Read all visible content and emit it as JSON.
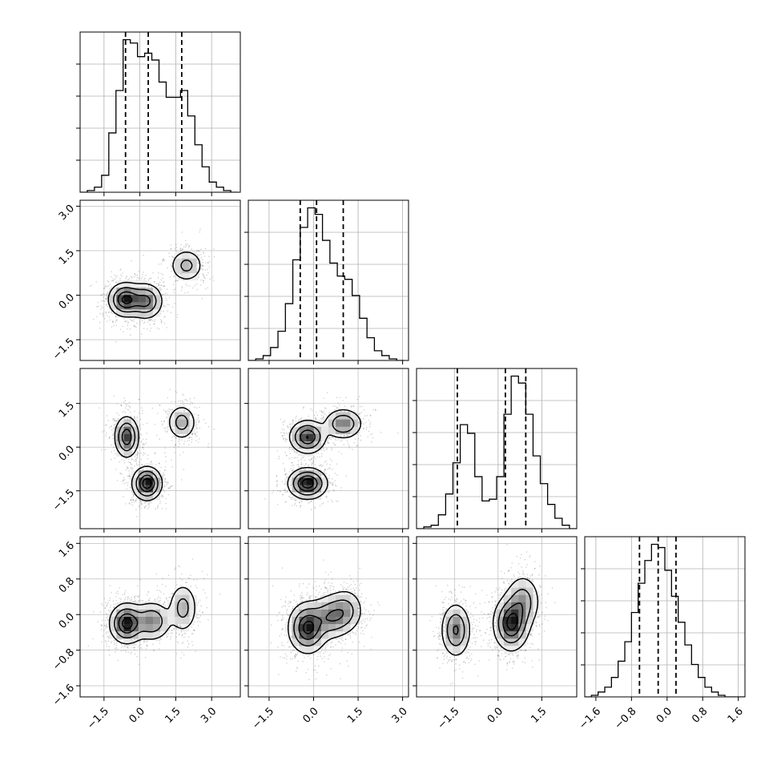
{
  "chart_data": {
    "type": "corner",
    "title": "",
    "n_params": 4,
    "colors": {
      "line": "#000000",
      "grid": "#b0b0b0",
      "hist_fill": "#000000"
    },
    "grid": true,
    "quantiles": [
      0.16,
      0.5,
      0.84
    ],
    "axis_ranges": [
      [
        -2.5,
        4.2
      ],
      [
        -2.2,
        3.2
      ],
      [
        -2.8,
        2.7
      ],
      [
        -1.85,
        1.75
      ]
    ],
    "ticks": [
      {
        "values": [
          -1.5,
          0.0,
          1.5,
          3.0
        ],
        "labels": [
          "−1.5",
          "0.0",
          "1.5",
          "3.0"
        ]
      },
      {
        "values": [
          -1.5,
          0.0,
          1.5,
          3.0
        ],
        "labels": [
          "−1.5",
          "0.0",
          "1.5",
          "3.0"
        ]
      },
      {
        "values": [
          -1.5,
          0.0,
          1.5
        ],
        "labels": [
          "−1.5",
          "0.0",
          "1.5"
        ]
      },
      {
        "values": [
          -1.6,
          -0.8,
          0.0,
          0.8,
          1.6
        ],
        "labels": [
          "−1.6",
          "−0.8",
          "0.0",
          "0.8",
          "1.6"
        ]
      }
    ],
    "marginals": [
      {
        "param": 0,
        "quantile_values": [
          -0.6,
          0.35,
          1.75
        ],
        "bin_edges": [
          -2.5,
          -2.2,
          -1.9,
          -1.6,
          -1.3,
          -1.0,
          -0.7,
          -0.4,
          -0.1,
          0.2,
          0.5,
          0.8,
          1.1,
          1.4,
          1.7,
          2.0,
          2.3,
          2.6,
          2.9,
          3.2,
          3.5,
          3.8,
          4.1
        ],
        "counts": [
          0,
          1,
          3,
          10,
          35,
          60,
          90,
          88,
          80,
          82,
          78,
          65,
          56,
          56,
          60,
          45,
          28,
          15,
          6,
          3,
          1,
          0
        ]
      },
      {
        "param": 1,
        "quantile_values": [
          -0.45,
          0.1,
          1.0
        ],
        "bin_edges": [
          -2.2,
          -1.95,
          -1.7,
          -1.45,
          -1.2,
          -0.95,
          -0.7,
          -0.45,
          -0.2,
          0.05,
          0.3,
          0.55,
          0.8,
          1.05,
          1.3,
          1.55,
          1.8,
          2.05,
          2.3,
          2.55,
          2.8,
          3.05
        ],
        "counts": [
          0,
          1,
          3,
          8,
          18,
          35,
          62,
          82,
          94,
          90,
          74,
          60,
          52,
          50,
          40,
          26,
          14,
          6,
          3,
          1,
          0
        ]
      },
      {
        "param": 2,
        "quantile_values": [
          -1.4,
          0.25,
          0.95
        ],
        "bin_edges": [
          -2.8,
          -2.55,
          -2.3,
          -2.05,
          -1.8,
          -1.55,
          -1.3,
          -1.05,
          -0.8,
          -0.55,
          -0.3,
          -0.05,
          0.2,
          0.45,
          0.7,
          0.95,
          1.2,
          1.45,
          1.7,
          1.95,
          2.2,
          2.45,
          2.7
        ],
        "counts": [
          0,
          1,
          2,
          8,
          20,
          38,
          60,
          55,
          30,
          16,
          17,
          30,
          66,
          88,
          84,
          66,
          42,
          26,
          14,
          6,
          2,
          0
        ]
      },
      {
        "param": 3,
        "quantile_values": [
          -0.62,
          -0.2,
          0.2
        ],
        "bin_edges": [
          -1.85,
          -1.7,
          -1.55,
          -1.4,
          -1.25,
          -1.1,
          -0.95,
          -0.8,
          -0.65,
          -0.5,
          -0.35,
          -0.2,
          -0.05,
          0.1,
          0.25,
          0.4,
          0.55,
          0.7,
          0.85,
          1.0,
          1.15,
          1.3,
          1.45,
          1.6,
          1.75
        ],
        "counts": [
          0,
          1,
          3,
          6,
          12,
          22,
          34,
          52,
          70,
          84,
          94,
          92,
          78,
          62,
          46,
          32,
          20,
          12,
          6,
          3,
          1,
          0,
          0,
          0
        ]
      }
    ],
    "joints": [
      {
        "x_param": 0,
        "y_param": 1,
        "spread": [
          0.9,
          0.75
        ],
        "modes": [
          {
            "x": -0.6,
            "y": -0.15,
            "sx": 0.35,
            "sy": 0.28,
            "w": 1.0
          },
          {
            "x": 0.25,
            "y": -0.2,
            "sx": 0.35,
            "sy": 0.3,
            "w": 0.75
          },
          {
            "x": 1.95,
            "y": 1.0,
            "sx": 0.35,
            "sy": 0.28,
            "w": 0.45
          }
        ]
      },
      {
        "x_param": 0,
        "y_param": 2,
        "spread": [
          0.8,
          0.65
        ],
        "modes": [
          {
            "x": -0.55,
            "y": 0.35,
            "sx": 0.25,
            "sy": 0.35,
            "w": 0.8
          },
          {
            "x": 0.3,
            "y": -1.25,
            "sx": 0.3,
            "sy": 0.28,
            "w": 1.0
          },
          {
            "x": 1.75,
            "y": 0.85,
            "sx": 0.3,
            "sy": 0.3,
            "w": 0.45
          }
        ]
      },
      {
        "x_param": 0,
        "y_param": 3,
        "spread": [
          0.9,
          0.5
        ],
        "modes": [
          {
            "x": -0.55,
            "y": -0.2,
            "sx": 0.35,
            "sy": 0.22,
            "w": 1.0
          },
          {
            "x": 0.5,
            "y": -0.15,
            "sx": 0.4,
            "sy": 0.22,
            "w": 0.6
          },
          {
            "x": 1.8,
            "y": 0.15,
            "sx": 0.3,
            "sy": 0.28,
            "w": 0.45
          }
        ]
      },
      {
        "x_param": 1,
        "y_param": 2,
        "spread": [
          0.7,
          0.65
        ],
        "modes": [
          {
            "x": -0.2,
            "y": 0.35,
            "sx": 0.3,
            "sy": 0.28,
            "w": 0.85
          },
          {
            "x": -0.2,
            "y": -1.25,
            "sx": 0.32,
            "sy": 0.26,
            "w": 1.0
          },
          {
            "x": 1.0,
            "y": 0.8,
            "sx": 0.32,
            "sy": 0.26,
            "w": 0.6
          }
        ]
      },
      {
        "x_param": 1,
        "y_param": 3,
        "spread": [
          0.75,
          0.5
        ],
        "modes": [
          {
            "x": -0.2,
            "y": -0.3,
            "sx": 0.32,
            "sy": 0.28,
            "w": 1.0
          },
          {
            "x": 0.6,
            "y": -0.05,
            "sx": 0.35,
            "sy": 0.25,
            "w": 0.6
          },
          {
            "x": 1.1,
            "y": 0.1,
            "sx": 0.3,
            "sy": 0.25,
            "w": 0.4
          }
        ]
      },
      {
        "x_param": 2,
        "y_param": 3,
        "spread": [
          0.8,
          0.5
        ],
        "modes": [
          {
            "x": -1.45,
            "y": -0.35,
            "sx": 0.25,
            "sy": 0.3,
            "w": 0.7
          },
          {
            "x": 0.45,
            "y": -0.2,
            "sx": 0.3,
            "sy": 0.3,
            "w": 1.0
          },
          {
            "x": 0.85,
            "y": 0.3,
            "sx": 0.3,
            "sy": 0.3,
            "w": 0.5
          }
        ]
      }
    ]
  }
}
